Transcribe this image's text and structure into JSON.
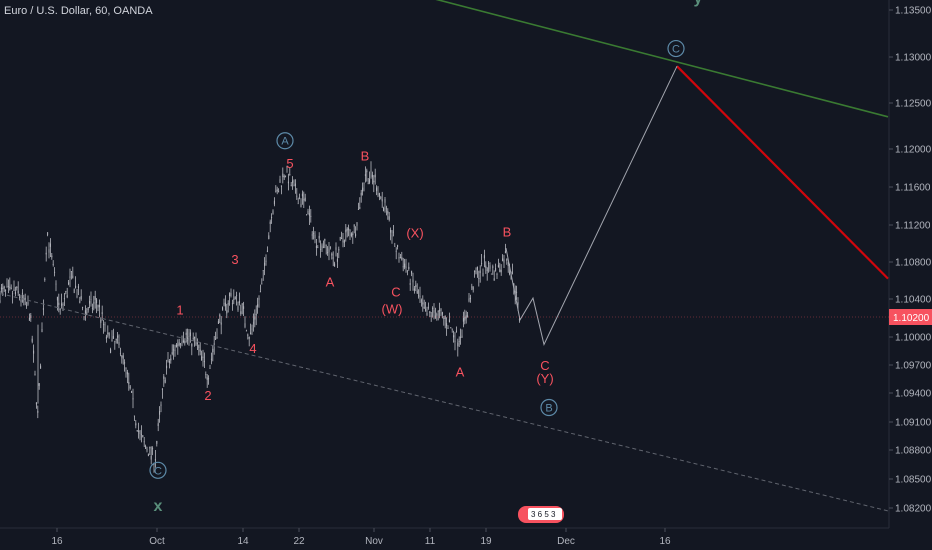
{
  "symbol_title": "Euro / U.S. Dollar, 60, OANDA",
  "colors": {
    "background": "#131722",
    "candle": "#b7b9c0",
    "wave_label": "#f7525f",
    "circle_label": "#5d8aa8",
    "green_line": "#3a7a32",
    "red_line": "#d1060c",
    "projection": "#a3a6af",
    "dashed_line": "#60646e",
    "price_tag": "#f7525f",
    "axis_text": "#b2b5be"
  },
  "chart_data": {
    "type": "candlestick",
    "y_axis": {
      "ticks": [
        "1.13500",
        "1.13000",
        "1.12500",
        "1.12000",
        "1.11600",
        "1.11200",
        "1.10800",
        "1.10400",
        "1.10000",
        "1.09700",
        "1.09400",
        "1.09100",
        "1.08800",
        "1.08500",
        "1.08200"
      ],
      "current_price": "1.10200"
    },
    "x_axis": {
      "ticks": [
        "16",
        "Oct",
        "14",
        "22",
        "Nov",
        "11",
        "19",
        "Dec",
        "16"
      ]
    },
    "price_path": [
      {
        "x": 0,
        "y": 1.10467
      },
      {
        "x": 18,
        "y": 1.10467
      },
      {
        "x": 30,
        "y": 1.1026
      },
      {
        "x": 38,
        "y": 1.0915
      },
      {
        "x": 47,
        "y": 1.1113
      },
      {
        "x": 60,
        "y": 1.1026
      },
      {
        "x": 72,
        "y": 1.1064
      },
      {
        "x": 84,
        "y": 1.1026
      },
      {
        "x": 97,
        "y": 1.1037
      },
      {
        "x": 108,
        "y": 1.0996
      },
      {
        "x": 120,
        "y": 1.0991
      },
      {
        "x": 128,
        "y": 1.0952
      },
      {
        "x": 140,
        "y": 1.0894
      },
      {
        "x": 150,
        "y": 1.0877
      },
      {
        "x": 155,
        "y": 1.0871
      },
      {
        "x": 165,
        "y": 1.0961
      },
      {
        "x": 175,
        "y": 1.0988
      },
      {
        "x": 183,
        "y": 1.1003
      },
      {
        "x": 196,
        "y": 1.0993
      },
      {
        "x": 208,
        "y": 1.0959
      },
      {
        "x": 218,
        "y": 1.1013
      },
      {
        "x": 230,
        "y": 1.1042
      },
      {
        "x": 240,
        "y": 1.1037
      },
      {
        "x": 250,
        "y": 1.0999
      },
      {
        "x": 262,
        "y": 1.1053
      },
      {
        "x": 272,
        "y": 1.1138
      },
      {
        "x": 285,
        "y": 1.1178
      },
      {
        "x": 295,
        "y": 1.1154
      },
      {
        "x": 305,
        "y": 1.1143
      },
      {
        "x": 315,
        "y": 1.1106
      },
      {
        "x": 325,
        "y": 1.1098
      },
      {
        "x": 335,
        "y": 1.1084
      },
      {
        "x": 345,
        "y": 1.1109
      },
      {
        "x": 355,
        "y": 1.1115
      },
      {
        "x": 365,
        "y": 1.1174
      },
      {
        "x": 375,
        "y": 1.1167
      },
      {
        "x": 385,
        "y": 1.1138
      },
      {
        "x": 397,
        "y": 1.1091
      },
      {
        "x": 405,
        "y": 1.1077
      },
      {
        "x": 415,
        "y": 1.1051
      },
      {
        "x": 425,
        "y": 1.1024
      },
      {
        "x": 436,
        "y": 1.1026
      },
      {
        "x": 448,
        "y": 1.1015
      },
      {
        "x": 458,
        "y": 1.0997
      },
      {
        "x": 466,
        "y": 1.1021
      },
      {
        "x": 475,
        "y": 1.1064
      },
      {
        "x": 485,
        "y": 1.1077
      },
      {
        "x": 496,
        "y": 1.1068
      },
      {
        "x": 506,
        "y": 1.1089
      },
      {
        "x": 514,
        "y": 1.1059
      },
      {
        "x": 520,
        "y": 1.1018
      }
    ],
    "projection_path": [
      {
        "x": 506,
        "y": 1.1095
      },
      {
        "x": 520,
        "y": 1.1018
      },
      {
        "x": 533,
        "y": 1.1041
      },
      {
        "x": 544,
        "y": 1.0992
      },
      {
        "x": 677,
        "y": 1.129
      }
    ],
    "trendlines": [
      {
        "name": "green",
        "from": {
          "x": 412,
          "y": 1.1368
        },
        "to": {
          "x": 888,
          "y": 1.1235
        }
      },
      {
        "name": "red",
        "from": {
          "x": 677,
          "y": 1.129
        },
        "to": {
          "x": 888,
          "y": 1.1062
        }
      },
      {
        "name": "dashed",
        "from": {
          "x": 0,
          "y": 1.1046
        },
        "to": {
          "x": 888,
          "y": 1.0817
        }
      }
    ],
    "wave_labels": [
      {
        "text": "1",
        "x": 180,
        "y": 1.1028
      },
      {
        "text": "2",
        "x": 208,
        "y": 1.0937
      },
      {
        "text": "3",
        "x": 235,
        "y": 1.1082
      },
      {
        "text": "4",
        "x": 253,
        "y": 1.0987
      },
      {
        "text": "5",
        "x": 290,
        "y": 1.1184
      },
      {
        "text": "A",
        "x": 330,
        "y": 1.1058
      },
      {
        "text": "B",
        "x": 365,
        "y": 1.1192
      },
      {
        "text": "(X)",
        "x": 415,
        "y": 1.1111
      },
      {
        "text": "C",
        "x": 396,
        "y": 1.1047
      },
      {
        "text": "(W)",
        "x": 392,
        "y": 1.1029
      },
      {
        "text": "A",
        "x": 460,
        "y": 1.0962
      },
      {
        "text": "B",
        "x": 507,
        "y": 1.1112
      },
      {
        "text": "C",
        "x": 545,
        "y": 1.0969
      },
      {
        "text": "(Y)",
        "x": 545,
        "y": 1.0955
      }
    ],
    "circle_labels": [
      {
        "text": "A",
        "x": 285,
        "y": 1.1209
      },
      {
        "text": "B",
        "x": 549,
        "y": 1.0925
      },
      {
        "text": "C",
        "x": 676,
        "y": 1.1309
      },
      {
        "text": "C",
        "x": 158,
        "y": 1.0859
      }
    ],
    "degree_labels": [
      {
        "text": "x",
        "x": 158,
        "y": 1.0822
      },
      {
        "text": "y",
        "x": 698,
        "y": 1.1363
      }
    ],
    "time_badge": "3 6 5 3"
  }
}
